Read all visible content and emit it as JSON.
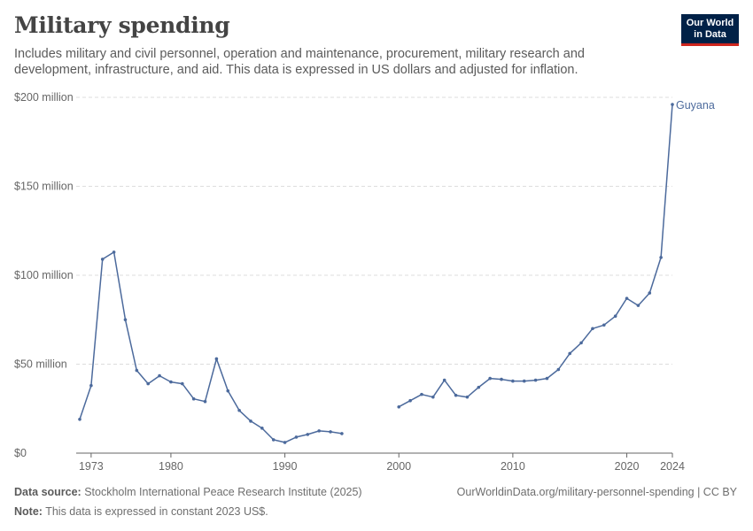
{
  "header": {
    "title": "Military spending",
    "subtitle": "Includes military and civil personnel, operation and maintenance, procurement, military research and development, infrastructure, and aid. This data is expressed in US dollars and adjusted for inflation.",
    "logo_line1": "Our World",
    "logo_line2": "in Data"
  },
  "footer": {
    "source_label": "Data source:",
    "source_text": "Stockholm International Peace Research Institute (2025)",
    "url": "OurWorldinData.org/military-personnel-spending | CC BY",
    "note_label": "Note:",
    "note_text": "This data is expressed in constant 2023 US$."
  },
  "colors": {
    "series": "#4c6a9c",
    "grid": "#dddddd",
    "axis": "#666666"
  },
  "chart_data": {
    "type": "line",
    "title": "Military spending",
    "xlim": [
      1972,
      2024
    ],
    "ylim": [
      0,
      200
    ],
    "y_ticks": [
      {
        "value": 0,
        "label": "$0"
      },
      {
        "value": 50,
        "label": "$50 million"
      },
      {
        "value": 100,
        "label": "$100 million"
      },
      {
        "value": 150,
        "label": "$150 million"
      },
      {
        "value": 200,
        "label": "$200 million"
      }
    ],
    "x_ticks": [
      {
        "value": 1973,
        "label": "1973"
      },
      {
        "value": 1980,
        "label": "1980"
      },
      {
        "value": 1990,
        "label": "1990"
      },
      {
        "value": 2000,
        "label": "2000"
      },
      {
        "value": 2010,
        "label": "2010"
      },
      {
        "value": 2020,
        "label": "2020"
      },
      {
        "value": 2024,
        "label": "2024"
      }
    ],
    "grid": true,
    "series": [
      {
        "name": "Guyana",
        "segments": [
          [
            [
              1972,
              19
            ],
            [
              1973,
              38
            ],
            [
              1974,
              109
            ],
            [
              1975,
              113
            ],
            [
              1976,
              75
            ],
            [
              1977,
              46.5
            ],
            [
              1978,
              39
            ],
            [
              1979,
              43.5
            ],
            [
              1980,
              40
            ],
            [
              1981,
              39
            ],
            [
              1982,
              30.5
            ],
            [
              1983,
              29
            ],
            [
              1984,
              53
            ],
            [
              1985,
              35
            ],
            [
              1986,
              24
            ],
            [
              1987,
              18
            ],
            [
              1988,
              14
            ],
            [
              1989,
              7.5
            ],
            [
              1990,
              6
            ],
            [
              1991,
              9
            ],
            [
              1992,
              10.5
            ],
            [
              1993,
              12.5
            ],
            [
              1994,
              12
            ],
            [
              1995,
              11
            ]
          ],
          [
            [
              2000,
              26
            ],
            [
              2001,
              29.5
            ],
            [
              2002,
              33
            ],
            [
              2003,
              31.5
            ],
            [
              2004,
              41
            ],
            [
              2005,
              32.5
            ],
            [
              2006,
              31.5
            ],
            [
              2007,
              37
            ],
            [
              2008,
              42
            ],
            [
              2009,
              41.5
            ],
            [
              2010,
              40.5
            ],
            [
              2011,
              40.5
            ],
            [
              2012,
              41
            ],
            [
              2013,
              42
            ],
            [
              2014,
              47
            ],
            [
              2015,
              56
            ],
            [
              2016,
              62
            ],
            [
              2017,
              70
            ],
            [
              2018,
              72
            ],
            [
              2019,
              77
            ],
            [
              2020,
              87
            ],
            [
              2021,
              83
            ],
            [
              2022,
              90
            ],
            [
              2023,
              110
            ],
            [
              2024,
              196
            ]
          ]
        ]
      }
    ]
  }
}
